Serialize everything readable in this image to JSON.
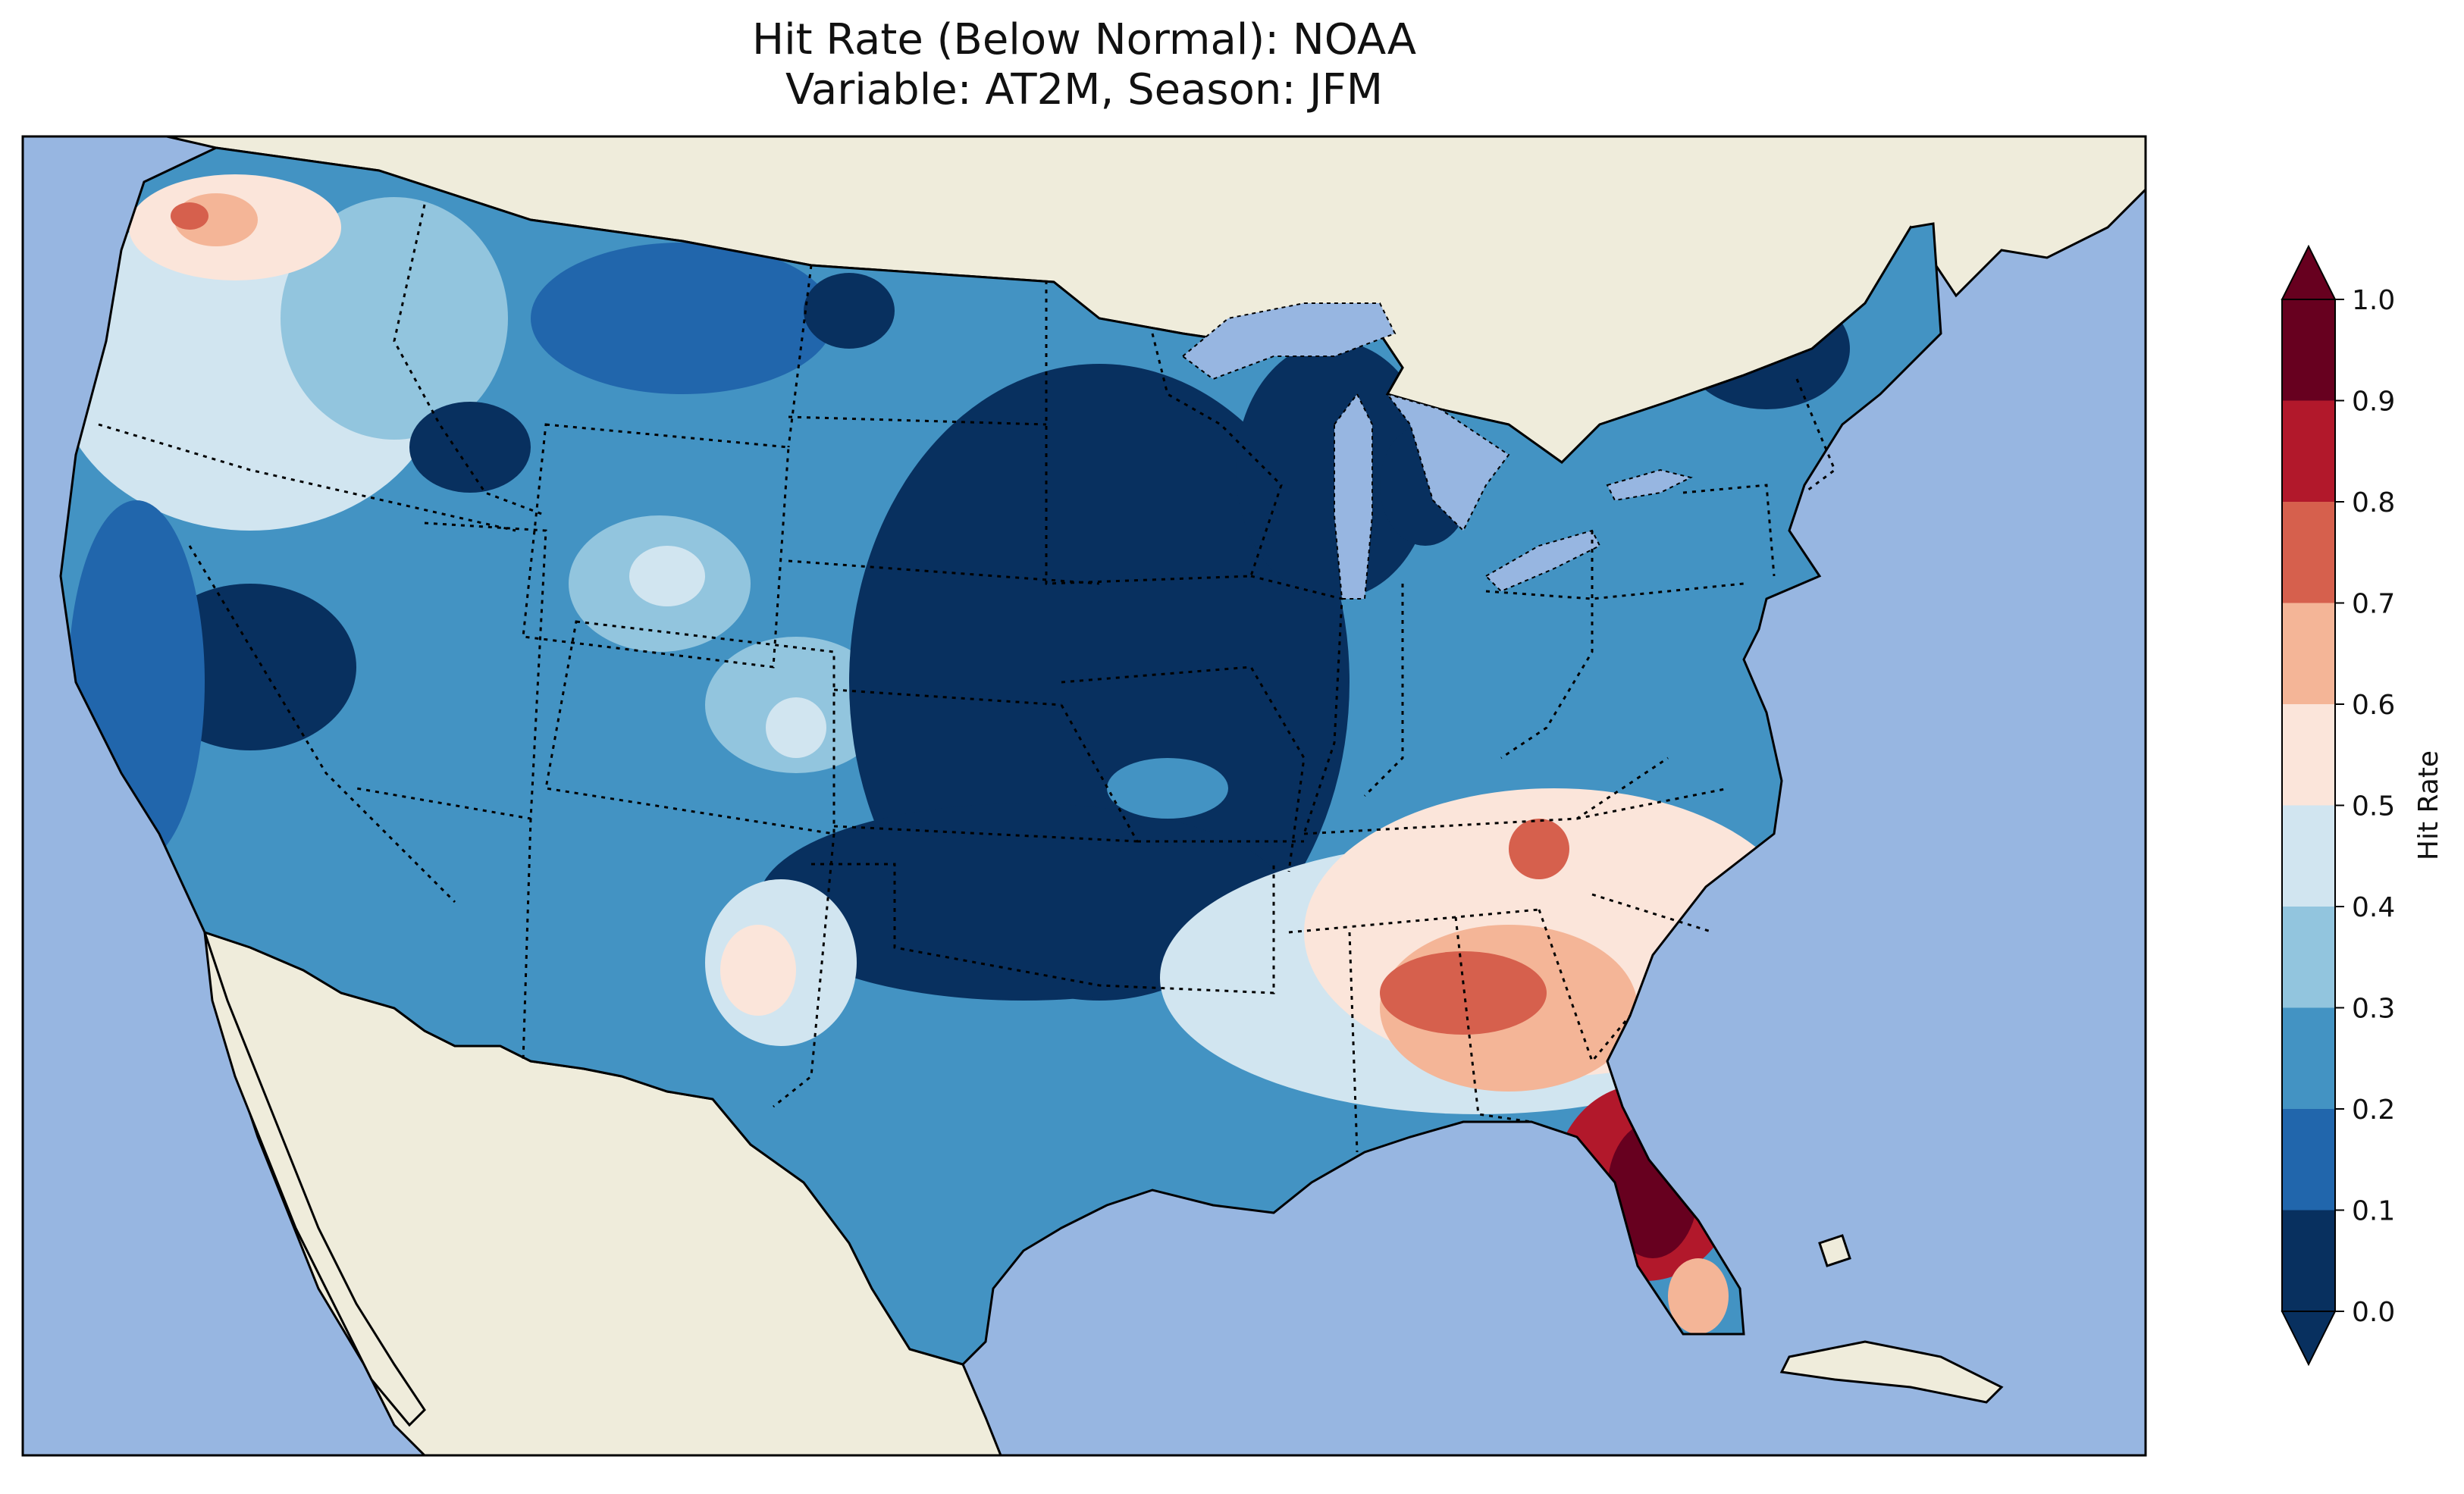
{
  "chart_data": {
    "type": "heatmap",
    "title_line1": "Hit Rate (Below Normal): NOAA",
    "title_line2": "Variable: AT2M, Season: JFM",
    "colorbar_label": "Hit Rate",
    "ticks": [
      "0.0",
      "0.1",
      "0.2",
      "0.3",
      "0.4",
      "0.5",
      "0.6",
      "0.7",
      "0.8",
      "0.9",
      "1.0"
    ],
    "bins": [
      {
        "range": [
          0.0,
          0.1
        ],
        "color": "#08305f"
      },
      {
        "range": [
          0.1,
          0.2
        ],
        "color": "#2166ac"
      },
      {
        "range": [
          0.2,
          0.3
        ],
        "color": "#4393c3"
      },
      {
        "range": [
          0.3,
          0.4
        ],
        "color": "#92c5de"
      },
      {
        "range": [
          0.4,
          0.5
        ],
        "color": "#d1e5f0"
      },
      {
        "range": [
          0.5,
          0.6
        ],
        "color": "#fbe5da"
      },
      {
        "range": [
          0.6,
          0.7
        ],
        "color": "#f4b597"
      },
      {
        "range": [
          0.7,
          0.8
        ],
        "color": "#d6604d"
      },
      {
        "range": [
          0.8,
          0.9
        ],
        "color": "#b2182b"
      },
      {
        "range": [
          0.9,
          1.0
        ],
        "color": "#67001f"
      }
    ],
    "colors": {
      "ocean": "#97b6e1",
      "land": "#efecdb",
      "lakes": "#97b6e1"
    }
  }
}
